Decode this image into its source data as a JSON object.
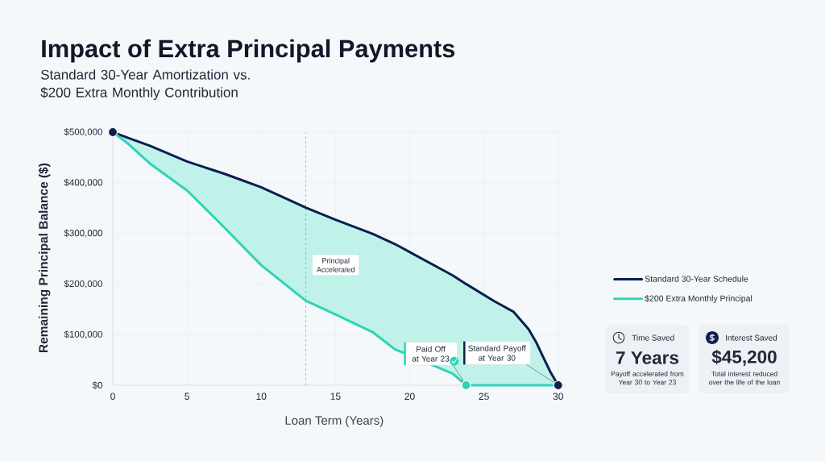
{
  "chart_data": [
    {
      "type": "line",
      "title": "Impact of Extra Principal Payments",
      "subtitle": "Standard 30-Year Amortization vs. $200 Extra Monthly Contribution",
      "xlabel": "Loan Term (Years)",
      "ylabel": "Remaining Principal Balance ($)",
      "series": [
        {
          "name": "Standard 30-Year Schedule",
          "type": "line",
          "color": "#0b1f4d",
          "x": [
            0,
            1,
            2.5,
            5,
            7.5,
            10,
            13,
            15,
            17.5,
            19,
            22.9,
            23.8,
            25.7,
            27,
            28,
            28.5,
            29,
            29.5,
            30
          ],
          "values": [
            500000,
            489000,
            473000,
            442000,
            418000,
            391000,
            351000,
            327000,
            299000,
            279000,
            217000,
            200000,
            166000,
            145000,
            111000,
            86000,
            55000,
            25000,
            0
          ]
        },
        {
          "name": "$200 Extra Monthly Principal",
          "type": "line",
          "color": "#2ed3b7",
          "x": [
            0,
            1,
            2.5,
            5,
            7.5,
            10,
            13,
            15,
            17.5,
            19,
            22.9,
            23.8,
            25.7,
            27,
            28,
            28.5,
            29,
            29.5,
            30
          ],
          "values": [
            500000,
            478000,
            438000,
            385000,
            312000,
            237000,
            167000,
            140000,
            105000,
            71000,
            23000,
            0,
            0,
            0,
            0,
            0,
            0,
            0,
            0
          ],
          "lower": [
            500000,
            478000,
            438000,
            385000,
            312000,
            237000,
            167000,
            140000,
            105000,
            71000,
            23000,
            0,
            0,
            0,
            0,
            0,
            0,
            0,
            0
          ],
          "upper": [
            500000,
            489000,
            473000,
            442000,
            418000,
            391000,
            351000,
            327000,
            299000,
            279000,
            217000,
            200000,
            166000,
            145000,
            111000,
            86000,
            55000,
            25000,
            0
          ]
        },
        {
          "type": "scatter",
          "color": "#0b1f4d",
          "marker": "circle",
          "x": [
            0,
            30
          ],
          "values": [
            500000,
            0
          ]
        },
        {
          "type": "scatter",
          "color": "#2ed3b7",
          "marker": "circle",
          "x": [
            23.8
          ],
          "values": [
            0
          ]
        }
      ],
      "xlim": [
        0,
        30.5
      ],
      "xticks": [
        0,
        5,
        10,
        15,
        20,
        25,
        30
      ],
      "ylim": [
        0,
        500000
      ],
      "yticks": [
        {
          "value": 0,
          "label": "$0"
        },
        {
          "value": 100000,
          "label": "$100,000"
        },
        {
          "value": 200000,
          "label": "$200,000"
        },
        {
          "value": 300000,
          "label": "$300,000"
        },
        {
          "value": 400000,
          "label": "$400,000"
        },
        {
          "value": 500000,
          "label": "$500,000"
        }
      ],
      "grid": true,
      "legend": "right",
      "ref_lines": [
        {
          "axis": "x",
          "value": 13,
          "label": "Principal Accelerated",
          "line_style": "dashed",
          "color": "#9ca3af"
        }
      ],
      "annotations": [
        {
          "text": "Paid Off at Year 23",
          "x": 23.8,
          "y": 0
        },
        {
          "text": "Standard Payoff at Year 30",
          "x": 30,
          "y": 0
        }
      ]
    },
    {
      "type": "other",
      "title": "Time Saved",
      "annotations": [
        "7 Years",
        "Payoff accelerated from Year 30 to Year 23"
      ]
    },
    {
      "type": "other",
      "title": "Interest Saved",
      "annotations": [
        "$45,200",
        "Total interest reduced over the life of the loan"
      ]
    }
  ]
}
